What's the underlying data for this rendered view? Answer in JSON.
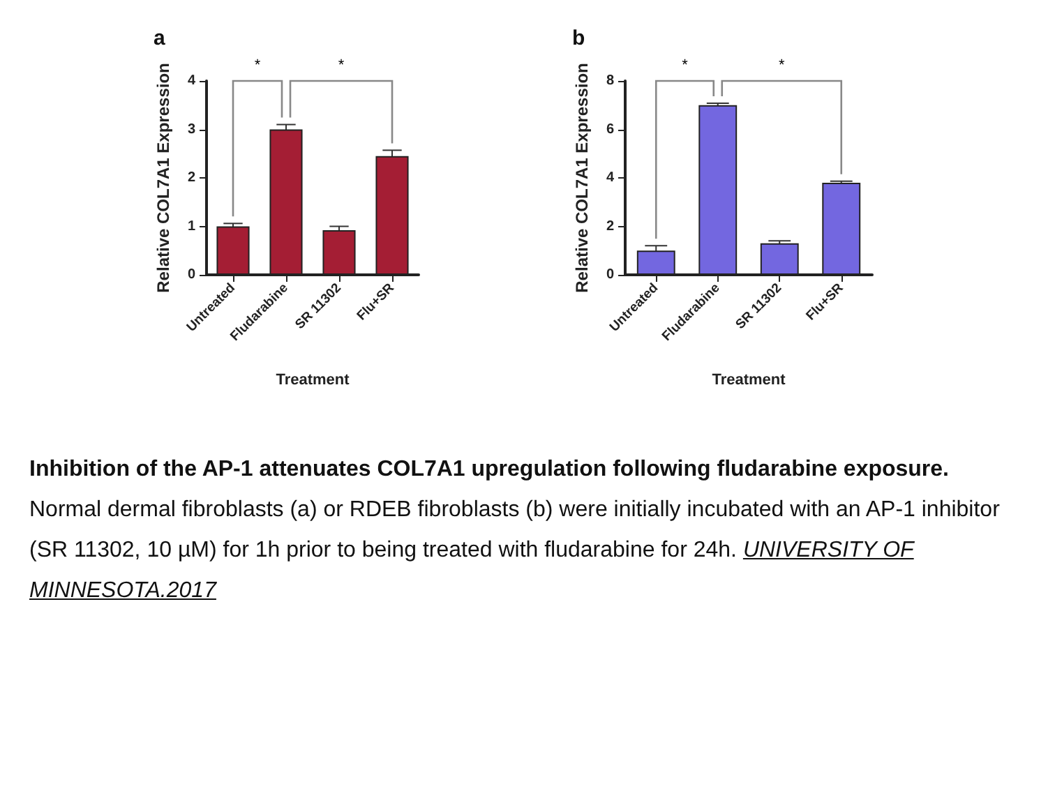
{
  "chart_data": [
    {
      "type": "bar",
      "title": "a",
      "xlabel": "Treatment",
      "ylabel": "Relative COL7A1 Expression",
      "categories": [
        "Untreated",
        "Fludarabine",
        "SR 11302",
        "Flu+SR"
      ],
      "values": [
        1.0,
        3.0,
        0.92,
        2.45
      ],
      "errors": [
        0.06,
        0.1,
        0.08,
        0.12
      ],
      "color": "#a41e34",
      "ylim": [
        0,
        4
      ],
      "yticks": [
        0,
        1,
        2,
        3,
        4
      ],
      "grid": false,
      "annotations": [
        "*",
        "*",
        "Inhibition of the AP-1 attenuates COL7A1 upregulation following fludarabine exposure.",
        "Normal dermal fibroblasts (a) or RDEB fibroblasts (b) were initially incubated with an AP-1 inhibitor (SR 11302, 10 µM) for 1h prior to being treated with fludarabine for 24h.",
        "UNIVERSITY OF MINNESOTA.2017"
      ]
    },
    {
      "type": "bar",
      "title": "b",
      "xlabel": "Treatment",
      "ylabel": "Relative COL7A1 Expression",
      "categories": [
        "Untreated",
        "Fludarabine",
        "SR 11302",
        "Flu+SR"
      ],
      "values": [
        1.0,
        7.0,
        1.3,
        3.8
      ],
      "errors": [
        0.2,
        0.08,
        0.1,
        0.06
      ],
      "color": "#7367e0",
      "ylim": [
        0,
        8
      ],
      "yticks": [
        0,
        2,
        4,
        6,
        8
      ],
      "grid": false,
      "annotations": [
        "*",
        "*"
      ]
    }
  ]
}
